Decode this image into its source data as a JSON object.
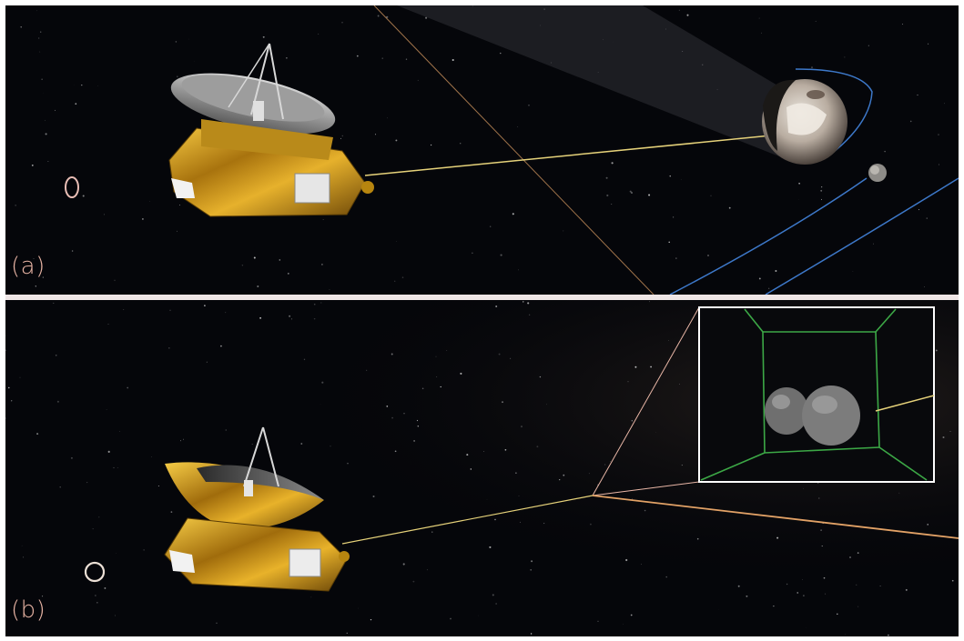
{
  "panels": [
    {
      "label": "(a)"
    },
    {
      "label": "(b)"
    }
  ],
  "colors": {
    "background": "#05060a",
    "panel_label": "#e7b3a3",
    "trajectory": "#e2a266",
    "sight_line": "#e6d27a",
    "orbit": "#3d78c9",
    "inset_frame": "#ffffff",
    "inset_box": "#3ca846",
    "foil": "#c89419",
    "dish": "#b8b8b8"
  },
  "icons": [
    "spacecraft-icon",
    "dwarf-planet-icon",
    "moon-icon",
    "kuiper-object-icon",
    "sun-marker-icon"
  ]
}
